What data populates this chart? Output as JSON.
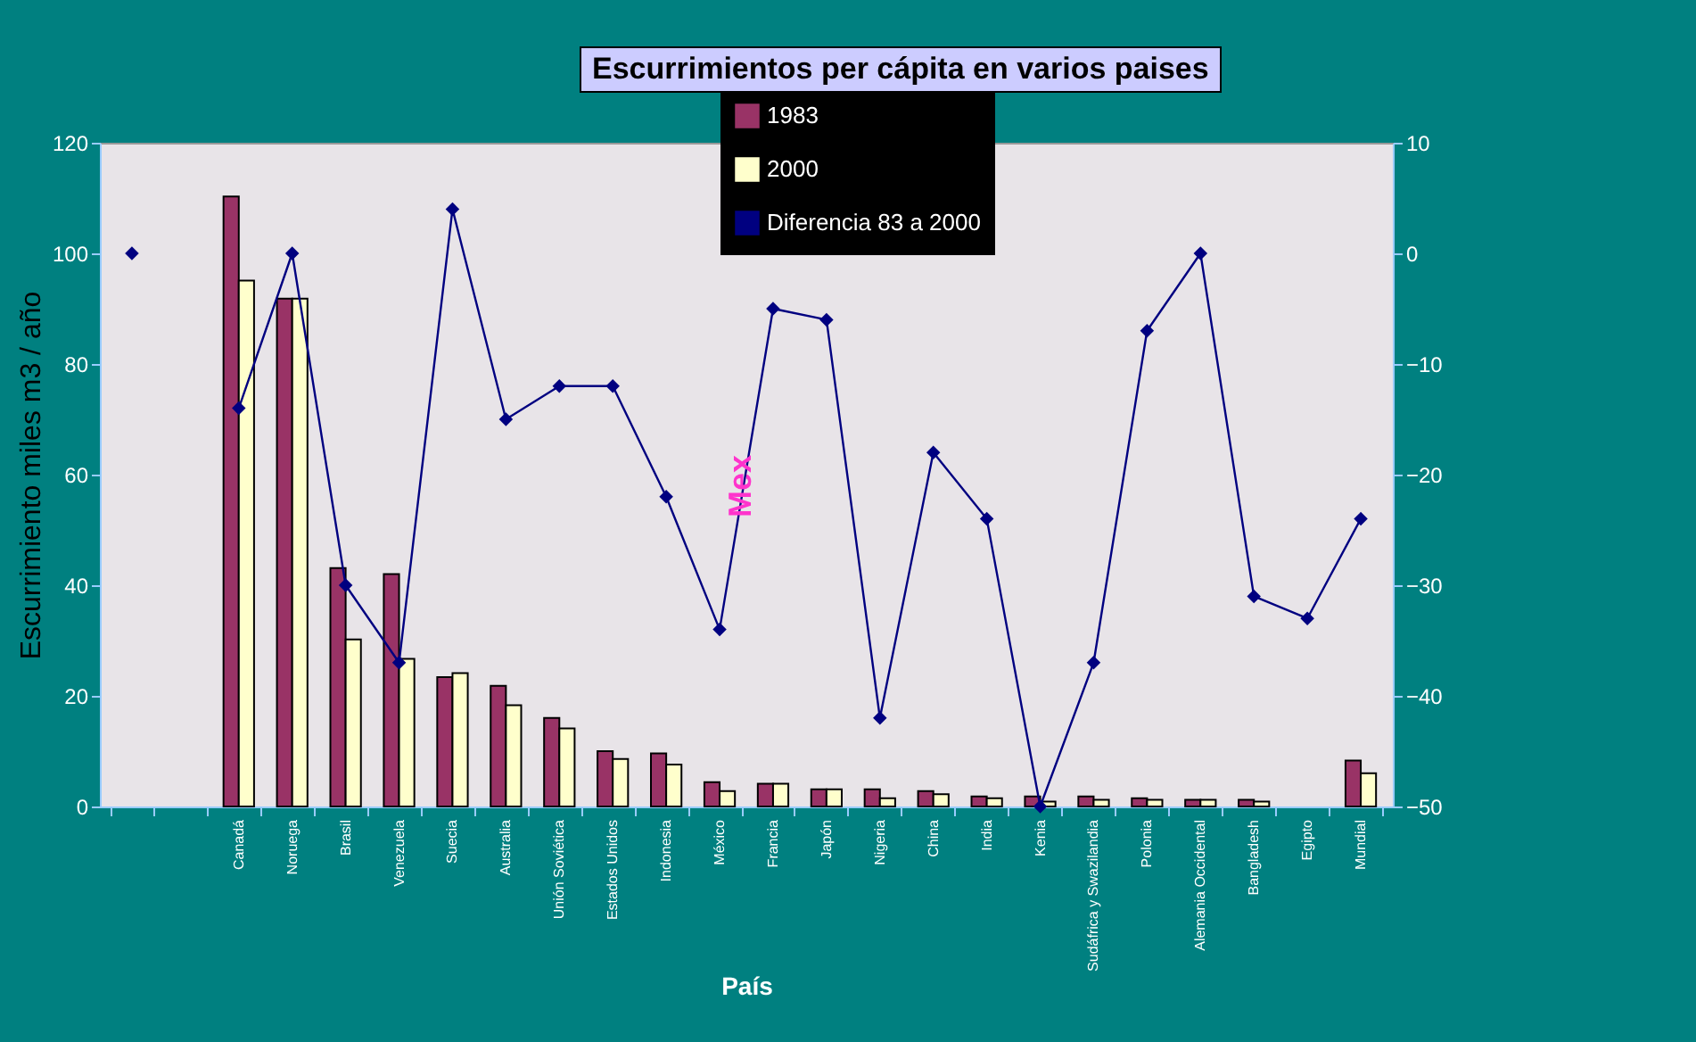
{
  "chart_data": {
    "type": "bar",
    "title": "Escurrimientos per cápita en varios paises",
    "xlabel": "País",
    "ylabel": "Escurrimiento miles m3 / año",
    "categories": [
      null,
      null,
      "Canadá",
      "Noruega",
      "Brasil",
      "Venezuela",
      "Suecia",
      "Australia",
      "Unión Soviética",
      "Estados Unidos",
      "Indonesia",
      "México",
      "Francia",
      "Japón",
      "Nigeria",
      "China",
      "India",
      "Kenia",
      "Sudáfrica y Swazilandia",
      "Polonia",
      "Alemania Occidental",
      "Bangladesh",
      "Egipto",
      "Mundial"
    ],
    "series": [
      {
        "name": "1983",
        "color": "#993366",
        "values": [
          null,
          null,
          110.3,
          91.8,
          43.1,
          42.0,
          23.4,
          21.8,
          16.0,
          10.0,
          9.6,
          4.4,
          4.1,
          3.1,
          3.1,
          2.8,
          1.8,
          1.8,
          1.8,
          1.5,
          1.2,
          1.2,
          null,
          8.3
        ]
      },
      {
        "name": "2000",
        "color": "#ffffcc",
        "values": [
          null,
          null,
          95.1,
          91.8,
          30.2,
          26.7,
          24.1,
          18.3,
          14.1,
          8.6,
          7.6,
          2.8,
          4.1,
          3.1,
          1.5,
          2.2,
          1.5,
          0.9,
          1.2,
          1.2,
          1.2,
          0.9,
          null,
          6.0
        ]
      },
      {
        "name": "Diferencia 83 a 2000",
        "type": "line",
        "axis": "y2",
        "color": "#000080",
        "values": [
          0,
          null,
          -14,
          0,
          -30,
          -37,
          4,
          -15,
          -12,
          -12,
          -22,
          -34,
          -5,
          -6,
          -42,
          -18,
          -24,
          -50,
          -37,
          -7,
          0,
          -31,
          -33,
          -24
        ]
      }
    ],
    "ylim": [
      0,
      120
    ],
    "yticks": [
      0,
      20,
      40,
      60,
      80,
      100,
      120
    ],
    "y2lim": [
      -50,
      10
    ],
    "y2ticks": [
      -50,
      -40,
      -30,
      -20,
      -10,
      0,
      10
    ],
    "legend": "top",
    "marker": "diamond",
    "annotations": [
      "Mex"
    ]
  }
}
